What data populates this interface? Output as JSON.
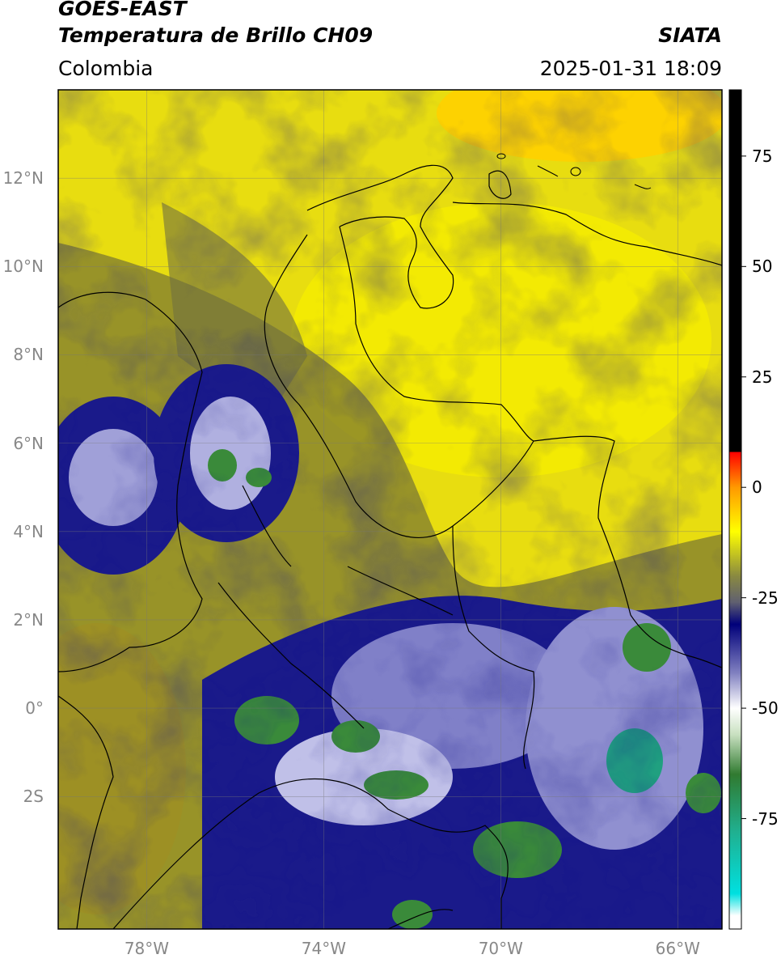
{
  "header": {
    "satellite": "GOES-EAST",
    "product": "Temperatura de Brillo CH09",
    "region": "Colombia",
    "agency": "SIATA",
    "datetime": "2025-01-31 18:09"
  },
  "map": {
    "lon_range": [
      -80,
      -65
    ],
    "lat_range": [
      -5,
      14
    ],
    "lat_ticks": [
      {
        "value": 12,
        "label": "12°N"
      },
      {
        "value": 10,
        "label": "10°N"
      },
      {
        "value": 8,
        "label": "8°N"
      },
      {
        "value": 6,
        "label": "6°N"
      },
      {
        "value": 4,
        "label": "4°N"
      },
      {
        "value": 2,
        "label": "2°N"
      },
      {
        "value": 0,
        "label": "0°"
      },
      {
        "value": -2,
        "label": "2S"
      }
    ],
    "lon_ticks": [
      {
        "value": -78,
        "label": "78°W"
      },
      {
        "value": -74,
        "label": "74°W"
      },
      {
        "value": -70,
        "label": "70°W"
      },
      {
        "value": -66,
        "label": "66°W"
      }
    ],
    "gridlines": true
  },
  "colorbar": {
    "range": [
      -100,
      90
    ],
    "ticks": [
      {
        "value": 75,
        "label": "75"
      },
      {
        "value": 50,
        "label": "50"
      },
      {
        "value": 25,
        "label": "25"
      },
      {
        "value": 0,
        "label": "0"
      },
      {
        "value": -25,
        "label": "-25"
      },
      {
        "value": -50,
        "label": "-50"
      },
      {
        "value": -75,
        "label": "-75"
      }
    ],
    "stops": [
      {
        "value": -97,
        "color": "#ffffff"
      },
      {
        "value": -92,
        "color": "#00e0e0"
      },
      {
        "value": -78,
        "color": "#20b090"
      },
      {
        "value": -65,
        "color": "#307a30"
      },
      {
        "value": -56,
        "color": "#c8e0c0"
      },
      {
        "value": -50,
        "color": "#ffffff"
      },
      {
        "value": -42,
        "color": "#8080c0"
      },
      {
        "value": -31,
        "color": "#00007a"
      },
      {
        "value": -26,
        "color": "#606070"
      },
      {
        "value": -20,
        "color": "#8a8a40"
      },
      {
        "value": -10,
        "color": "#ffff00"
      },
      {
        "value": 0,
        "color": "#ff9900"
      },
      {
        "value": 8,
        "color": "#ff0000"
      },
      {
        "value": 8.01,
        "color": "#000000"
      },
      {
        "value": 90,
        "color": "#000000"
      }
    ]
  }
}
